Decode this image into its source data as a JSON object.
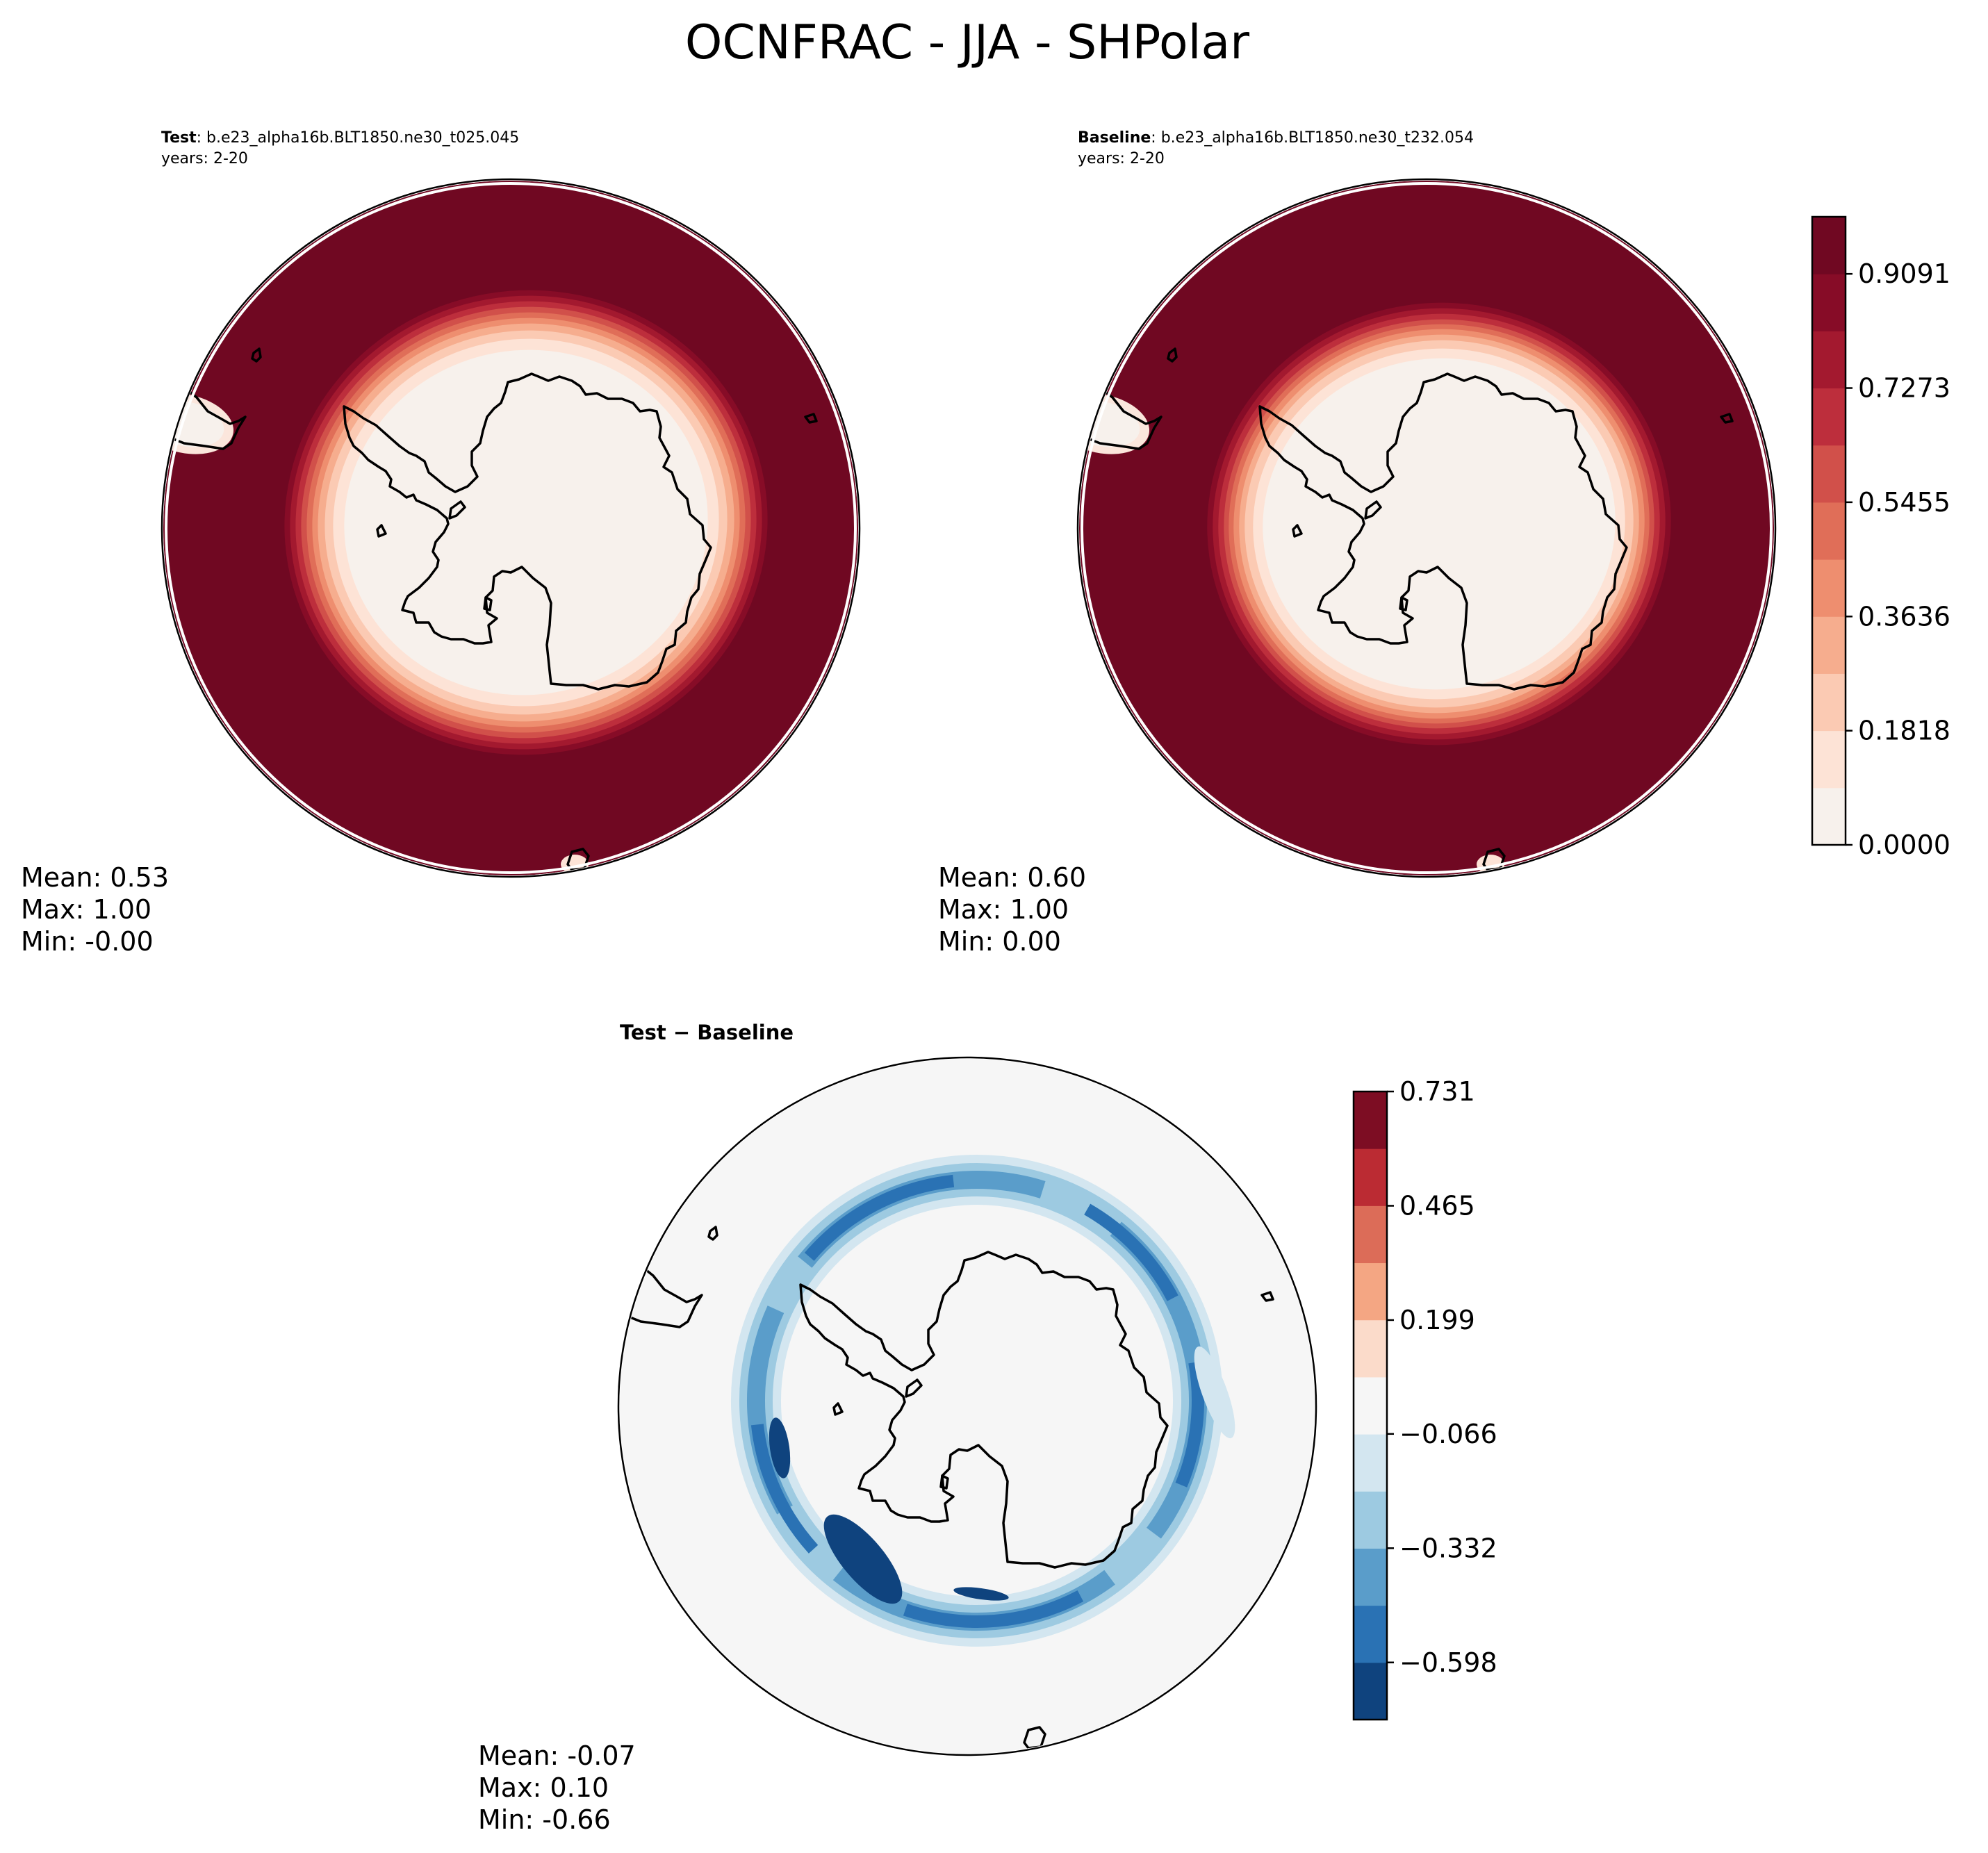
{
  "figure": {
    "title": "OCNFRAC - JJA - SHPolar"
  },
  "chart_data": [
    {
      "type": "heatmap",
      "panel": "test",
      "projection": "south-polar-stereographic",
      "title_bold": "Test",
      "title_case": "b.e23_alpha16b.BLT1850.ne30_t025.045",
      "title_sep": ": ",
      "years": "years: 2-20",
      "stats": {
        "mean": "Mean:  0.53",
        "max": "Max:  1.00",
        "min": "Min: -0.00"
      },
      "ice_edge_lat_deg": -58,
      "field_range": [
        0.0,
        1.0
      ]
    },
    {
      "type": "heatmap",
      "panel": "baseline",
      "projection": "south-polar-stereographic",
      "title_bold": "Baseline",
      "title_case": "b.e23_alpha16b.BLT1850.ne30_t232.054",
      "title_sep": ": ",
      "years": "years: 2-20",
      "stats": {
        "mean": "Mean:  0.60",
        "max": "Max:  1.00",
        "min": "Min:  0.00"
      },
      "ice_edge_lat_deg": -61,
      "field_range": [
        0.0,
        1.0
      ]
    },
    {
      "type": "heatmap",
      "panel": "difference",
      "projection": "south-polar-stereographic",
      "title": "Test − Baseline",
      "stats": {
        "mean": "Mean: -0.07",
        "max": "Max:  0.10",
        "min": "Min: -0.66"
      },
      "field_range": [
        -0.66,
        0.1
      ]
    }
  ],
  "colorbars": {
    "main": {
      "range": [
        0.0,
        1.0
      ],
      "levels": 11,
      "ticks": [
        {
          "value": 0.0,
          "label": "0.0000"
        },
        {
          "value": 0.1818,
          "label": "0.1818"
        },
        {
          "value": 0.3636,
          "label": "0.3636"
        },
        {
          "value": 0.5455,
          "label": "0.5455"
        },
        {
          "value": 0.7273,
          "label": "0.7273"
        },
        {
          "value": 0.9091,
          "label": "0.9091"
        }
      ],
      "colors": [
        "#f7f1ec",
        "#fde3d6",
        "#fbcab3",
        "#f6ad8e",
        "#ee8e6f",
        "#e06e58",
        "#d1504a",
        "#bd2e3c",
        "#a3192f",
        "#870c27",
        "#700822"
      ]
    },
    "diff": {
      "range": [
        -0.731,
        0.731
      ],
      "levels": 11,
      "ticks": [
        {
          "value": -0.598,
          "label": "−0.598"
        },
        {
          "value": -0.332,
          "label": "−0.332"
        },
        {
          "value": -0.066,
          "label": "−0.066"
        },
        {
          "value": 0.199,
          "label": "0.199"
        },
        {
          "value": 0.465,
          "label": "0.465"
        },
        {
          "value": 0.731,
          "label": "0.731"
        }
      ],
      "colors": [
        "#0f437e",
        "#2a72b4",
        "#5a9dca",
        "#9dcae1",
        "#d3e6f0",
        "#f6f6f6",
        "#fbdbca",
        "#f4a683",
        "#dc6c58",
        "#bb2b33",
        "#7d0d23"
      ]
    }
  }
}
